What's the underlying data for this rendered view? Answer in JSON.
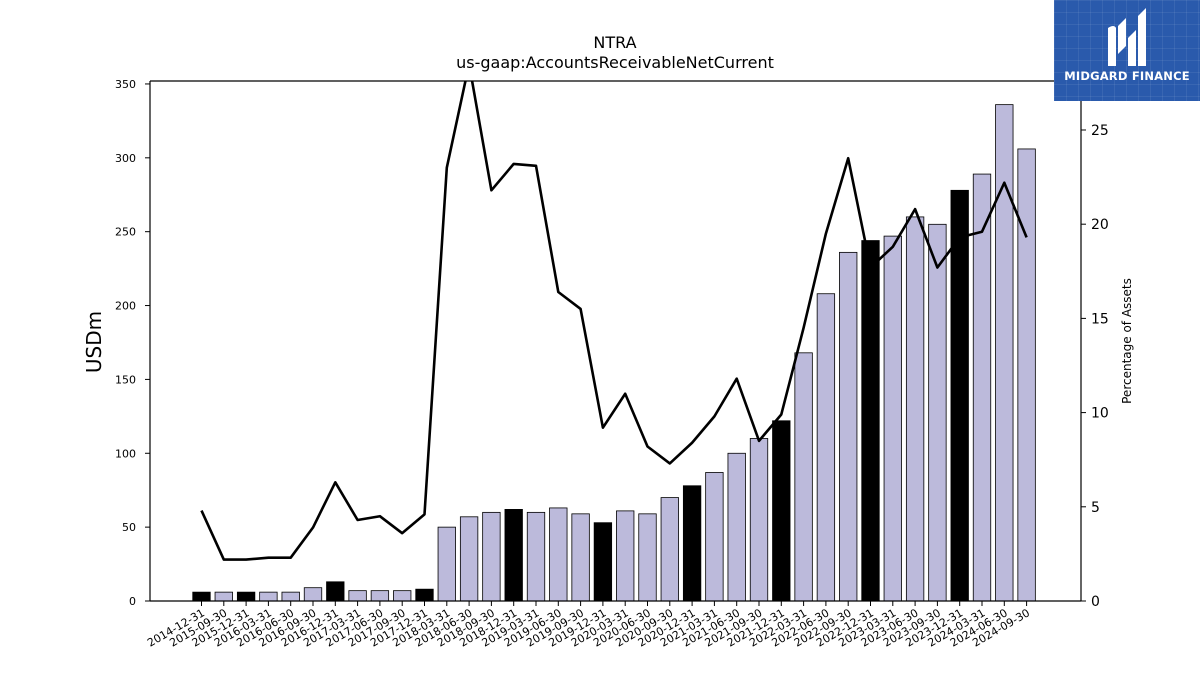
{
  "chart_data": {
    "type": "bar+line",
    "title": "NTRA",
    "subtitle": "us-gaap:AccountsReceivableNetCurrent",
    "ylabel": "USDm",
    "y2label": "Percentage of Assets",
    "ylim": [
      0,
      352
    ],
    "y2lim": [
      0,
      27.6
    ],
    "yticks": [
      0,
      50,
      100,
      150,
      200,
      250,
      300,
      350
    ],
    "y2ticks": [
      0,
      5,
      10,
      15,
      20,
      25
    ],
    "categories": [
      "2014-12-31",
      "2015-09-30",
      "2015-12-31",
      "2016-03-31",
      "2016-06-30",
      "2016-09-30",
      "2016-12-31",
      "2017-03-31",
      "2017-06-30",
      "2017-09-30",
      "2017-12-31",
      "2018-03-31",
      "2018-06-30",
      "2018-09-30",
      "2018-12-31",
      "2019-03-31",
      "2019-06-30",
      "2019-09-30",
      "2019-12-31",
      "2020-03-31",
      "2020-06-30",
      "2020-09-30",
      "2020-12-31",
      "2021-03-31",
      "2021-06-30",
      "2021-09-30",
      "2021-12-31",
      "2022-03-31",
      "2022-06-30",
      "2022-09-30",
      "2022-12-31",
      "2023-03-31",
      "2023-06-30",
      "2023-09-30",
      "2023-12-31",
      "2024-03-31",
      "2024-06-30",
      "2024-09-30"
    ],
    "series": [
      {
        "type": "bar",
        "values": [
          6,
          6,
          6,
          6,
          6,
          9,
          13,
          7,
          7,
          7,
          8,
          50,
          57,
          60,
          62,
          60,
          63,
          59,
          53,
          61,
          59,
          70,
          78,
          87,
          100,
          110,
          122,
          168,
          208,
          236,
          244,
          247,
          260,
          255,
          278,
          289,
          336,
          306
        ],
        "highlight": [
          true,
          false,
          true,
          false,
          false,
          false,
          true,
          false,
          false,
          false,
          true,
          false,
          false,
          false,
          true,
          false,
          false,
          false,
          true,
          false,
          false,
          false,
          true,
          false,
          false,
          false,
          true,
          false,
          false,
          false,
          true,
          false,
          false,
          false,
          true,
          false,
          false,
          false
        ]
      },
      {
        "type": "line",
        "axis": "right",
        "values": [
          4.8,
          2.2,
          2.2,
          2.3,
          2.3,
          3.9,
          6.3,
          4.3,
          4.5,
          3.6,
          4.6,
          23.0,
          28.5,
          21.8,
          23.2,
          23.1,
          16.4,
          15.5,
          9.2,
          11.0,
          8.2,
          7.3,
          8.4,
          9.8,
          11.8,
          8.5,
          9.9,
          14.5,
          19.5,
          23.5,
          17.7,
          18.8,
          20.8,
          17.7,
          19.3,
          19.6,
          22.2,
          19.3
        ]
      }
    ],
    "colors": {
      "bar": "#bcbadb",
      "bar_highlight": "#000000",
      "line": "#000000"
    },
    "grid": false
  },
  "logo": {
    "text": "MIDGARD FINANCE",
    "background": "#2a5aac",
    "icon": "midgard-m-icon"
  }
}
